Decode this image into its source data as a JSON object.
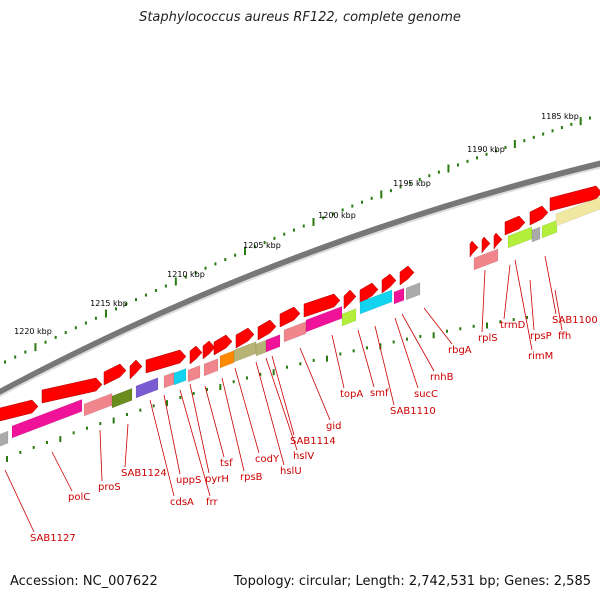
{
  "header": {
    "title": "Staphylococcus aureus RF122, complete genome"
  },
  "footer": {
    "accession": "Accession: NC_007622",
    "summary": "Topology: circular; Length: 2,742,531 bp; Genes: 2,585"
  },
  "colors": {
    "forward_gene": "#ff0000",
    "backbone": "#777777",
    "tick": "#2a7a12",
    "label": "#cc0000",
    "cog_pink": "#f0139a",
    "cog_salmon": "#f0868c",
    "cog_olive": "#6b8c1e",
    "cog_purple": "#7b5bd1",
    "cog_cyan": "#12d4ee",
    "cog_orange": "#ff8a00",
    "cog_khaki": "#b6b375",
    "cog_lime": "#b2ee3a",
    "cog_grey": "#aaaaaa",
    "cog_yellow": "#f0e8a0"
  },
  "scale": {
    "unit": "kbp",
    "labels": [
      "1185 kbp",
      "1190 kbp",
      "1195 kbp",
      "1200 kbp",
      "1205 kbp",
      "1210 kbp",
      "1215 kbp",
      "1220 kbp"
    ]
  },
  "genes": [
    "SAB1100",
    "ffh",
    "rpsP",
    "rimM",
    "trmD",
    "rplS",
    "rbgA",
    "rnhB",
    "sucC",
    "SAB1110",
    "smf",
    "topA",
    "gid",
    "SAB1114",
    "hslV",
    "hslU",
    "codY",
    "rpsB",
    "tsf",
    "pyrH",
    "frr",
    "uppS",
    "cdsA",
    "SAB1124",
    "proS",
    "polC",
    "SAB1127"
  ]
}
